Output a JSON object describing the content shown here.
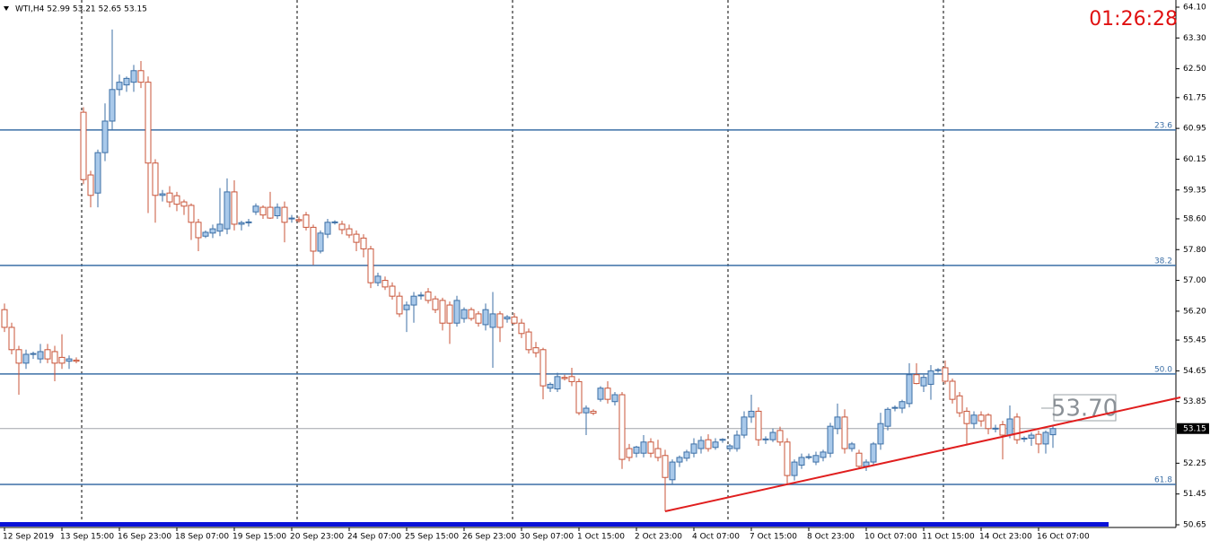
{
  "chart_data": {
    "type": "candlestick",
    "header": "WTI,H4  52.99 53.21 52.65 53.15",
    "clock": "01:26:28",
    "price_label": "53.70",
    "ylim": [
      50.65,
      64.1
    ],
    "yticks": [
      {
        "value": 64.1,
        "label": "64.10"
      },
      {
        "value": 63.3,
        "label": "63.30"
      },
      {
        "value": 62.5,
        "label": "62.50"
      },
      {
        "value": 61.75,
        "label": "61.75"
      },
      {
        "value": 60.95,
        "label": "60.95"
      },
      {
        "value": 60.15,
        "label": "60.15"
      },
      {
        "value": 59.35,
        "label": "59.35"
      },
      {
        "value": 58.6,
        "label": "58.60"
      },
      {
        "value": 57.8,
        "label": "57.80"
      },
      {
        "value": 57.0,
        "label": "57.00"
      },
      {
        "value": 56.2,
        "label": "56.20"
      },
      {
        "value": 55.45,
        "label": "55.45"
      },
      {
        "value": 54.65,
        "label": "54.65"
      },
      {
        "value": 53.85,
        "label": "53.85"
      },
      {
        "value": 52.25,
        "label": "52.25"
      },
      {
        "value": 51.45,
        "label": "51.45"
      },
      {
        "value": 50.65,
        "label": "50.65"
      }
    ],
    "current_price": {
      "value": 53.15,
      "label": "53.15"
    },
    "levels": [
      {
        "label": "23.6",
        "value": 60.91
      },
      {
        "label": "38.2",
        "value": 57.39
      },
      {
        "label": "50.0",
        "value": 54.57
      },
      {
        "label": "61.8",
        "value": 51.7
      }
    ],
    "level_color": "#3c6fa6",
    "trendline": {
      "x": [
        92,
        163.75
      ],
      "y": [
        51.0,
        53.96
      ],
      "color": "#e01e1e"
    },
    "up_color": "#a9c9ea",
    "up_stroke": "#3c6fa6",
    "down_color": "#ffffff",
    "down_stroke": "#c8553a",
    "categories": [
      "12 Sep 2019",
      null,
      null,
      null,
      null,
      null,
      null,
      null,
      "13 Sep 15:00",
      null,
      null,
      null,
      null,
      null,
      null,
      null,
      "16 Sep 23:00",
      null,
      null,
      null,
      null,
      null,
      null,
      null,
      "18 Sep 07:00",
      null,
      null,
      null,
      null,
      null,
      null,
      null,
      "19 Sep 15:00",
      null,
      null,
      null,
      null,
      null,
      null,
      null,
      "20 Sep 23:00",
      null,
      null,
      null,
      null,
      null,
      null,
      null,
      "24 Sep 07:00",
      null,
      null,
      null,
      null,
      null,
      null,
      null,
      "25 Sep 15:00",
      null,
      null,
      null,
      null,
      null,
      null,
      null,
      "26 Sep 23:00",
      null,
      null,
      null,
      null,
      null,
      null,
      null,
      "30 Sep 07:00",
      null,
      null,
      null,
      null,
      null,
      null,
      null,
      "1 Oct 15:00",
      null,
      null,
      null,
      null,
      null,
      null,
      null,
      "2 Oct 23:00",
      null,
      null,
      null,
      null,
      null,
      null,
      null,
      "4 Oct 07:00",
      null,
      null,
      null,
      null,
      null,
      null,
      null,
      "7 Oct 15:00",
      null,
      null,
      null,
      null,
      null,
      null,
      null,
      "8 Oct 23:00",
      null,
      null,
      null,
      null,
      null,
      null,
      null,
      "10 Oct 07:00",
      null,
      null,
      null,
      null,
      null,
      null,
      null,
      "11 Oct 15:00",
      null,
      null,
      null,
      null,
      null,
      null,
      null,
      "14 Oct 23:00",
      null,
      null,
      null,
      null,
      null,
      null,
      null,
      "16 Oct 07:00",
      null,
      null
    ],
    "ohlc": [
      [
        56.24,
        56.4,
        55.66,
        55.78
      ],
      [
        55.78,
        55.9,
        55.08,
        55.2
      ],
      [
        55.2,
        55.3,
        54.03,
        54.85
      ],
      [
        54.85,
        55.2,
        54.7,
        55.08
      ],
      [
        55.08,
        55.15,
        54.96,
        55.1
      ],
      [
        54.96,
        55.35,
        54.85,
        55.15
      ],
      [
        55.2,
        55.35,
        54.85,
        54.96
      ],
      [
        55.15,
        55.3,
        54.38,
        54.85
      ],
      [
        55.0,
        55.6,
        54.7,
        54.85
      ],
      [
        54.9,
        55.05,
        54.7,
        54.96
      ],
      [
        54.93,
        55.0,
        54.85,
        54.9
      ],
      [
        61.37,
        61.5,
        59.5,
        59.62
      ],
      [
        59.74,
        59.85,
        58.9,
        59.21
      ],
      [
        59.27,
        60.4,
        58.9,
        60.32
      ],
      [
        60.32,
        61.6,
        60.1,
        61.14
      ],
      [
        61.14,
        63.52,
        60.9,
        61.96
      ],
      [
        61.96,
        62.35,
        61.8,
        62.15
      ],
      [
        62.08,
        62.3,
        61.9,
        62.25
      ],
      [
        62.15,
        62.6,
        61.9,
        62.45
      ],
      [
        62.45,
        62.7,
        62.0,
        62.15
      ],
      [
        62.15,
        62.3,
        58.75,
        60.05
      ],
      [
        60.05,
        60.15,
        58.5,
        59.21
      ],
      [
        59.21,
        59.35,
        59.05,
        59.25
      ],
      [
        59.27,
        59.45,
        58.9,
        59.04
      ],
      [
        59.2,
        59.3,
        58.8,
        58.98
      ],
      [
        59.04,
        59.1,
        58.7,
        58.93
      ],
      [
        58.95,
        59.0,
        58.05,
        58.51
      ],
      [
        58.51,
        58.6,
        57.76,
        58.11
      ],
      [
        58.15,
        58.3,
        58.1,
        58.25
      ],
      [
        58.23,
        58.45,
        58.1,
        58.34
      ],
      [
        58.28,
        59.4,
        58.15,
        58.46
      ],
      [
        58.34,
        59.65,
        58.2,
        59.3
      ],
      [
        59.3,
        59.6,
        58.3,
        58.46
      ],
      [
        58.46,
        58.55,
        58.3,
        58.5
      ],
      [
        58.5,
        58.6,
        58.4,
        58.52
      ],
      [
        58.78,
        59.0,
        58.7,
        58.93
      ],
      [
        58.9,
        58.95,
        58.6,
        58.7
      ],
      [
        58.9,
        59.3,
        58.6,
        58.62
      ],
      [
        58.68,
        59.0,
        58.6,
        58.9
      ],
      [
        58.9,
        59.05,
        57.99,
        58.51
      ],
      [
        58.6,
        58.7,
        58.5,
        58.62
      ],
      [
        58.58,
        58.66,
        58.5,
        58.55
      ],
      [
        58.7,
        58.78,
        58.3,
        58.38
      ],
      [
        58.38,
        58.45,
        57.4,
        57.76
      ],
      [
        57.76,
        58.3,
        57.7,
        58.23
      ],
      [
        58.2,
        58.6,
        58.1,
        58.51
      ],
      [
        58.5,
        58.56,
        58.45,
        58.52
      ],
      [
        58.46,
        58.55,
        58.2,
        58.32
      ],
      [
        58.34,
        58.45,
        58.1,
        58.18
      ],
      [
        58.2,
        58.3,
        57.76,
        57.99
      ],
      [
        58.1,
        58.2,
        57.6,
        57.82
      ],
      [
        57.82,
        57.9,
        56.8,
        56.94
      ],
      [
        56.94,
        57.2,
        56.85,
        57.11
      ],
      [
        57.0,
        57.1,
        56.75,
        56.83
      ],
      [
        56.85,
        56.95,
        56.5,
        56.59
      ],
      [
        56.59,
        56.7,
        56.05,
        56.13
      ],
      [
        56.24,
        56.45,
        55.66,
        56.36
      ],
      [
        56.36,
        56.7,
        55.9,
        56.59
      ],
      [
        56.6,
        56.7,
        56.5,
        56.62
      ],
      [
        56.7,
        56.8,
        56.4,
        56.48
      ],
      [
        56.52,
        56.6,
        56.15,
        56.24
      ],
      [
        56.48,
        56.55,
        55.7,
        55.89
      ],
      [
        56.36,
        56.45,
        55.35,
        55.89
      ],
      [
        55.89,
        56.6,
        55.8,
        56.48
      ],
      [
        56.01,
        56.3,
        55.9,
        56.24
      ],
      [
        56.24,
        56.3,
        55.95,
        56.01
      ],
      [
        56.13,
        56.2,
        55.8,
        55.89
      ],
      [
        55.85,
        56.4,
        55.7,
        56.24
      ],
      [
        55.78,
        56.7,
        54.73,
        56.13
      ],
      [
        56.13,
        56.2,
        55.4,
        55.78
      ],
      [
        56.0,
        56.1,
        55.9,
        56.05
      ],
      [
        56.05,
        56.15,
        55.85,
        55.89
      ],
      [
        55.89,
        56.0,
        55.5,
        55.62
      ],
      [
        55.66,
        55.75,
        55.1,
        55.2
      ],
      [
        55.25,
        55.4,
        55.0,
        55.12
      ],
      [
        55.2,
        55.25,
        53.91,
        54.26
      ],
      [
        54.2,
        54.35,
        54.1,
        54.3
      ],
      [
        54.18,
        54.6,
        54.1,
        54.5
      ],
      [
        54.48,
        54.55,
        54.4,
        54.45
      ],
      [
        54.5,
        54.73,
        54.25,
        54.37
      ],
      [
        54.37,
        54.45,
        53.5,
        53.56
      ],
      [
        53.56,
        53.75,
        52.98,
        53.68
      ],
      [
        53.6,
        53.65,
        53.5,
        53.55
      ],
      [
        53.91,
        54.25,
        53.85,
        54.2
      ],
      [
        54.2,
        54.38,
        53.8,
        53.91
      ],
      [
        53.85,
        54.1,
        53.75,
        54.03
      ],
      [
        54.03,
        54.1,
        52.1,
        52.35
      ],
      [
        52.63,
        52.75,
        52.3,
        52.4
      ],
      [
        52.51,
        52.7,
        52.4,
        52.67
      ],
      [
        52.51,
        52.98,
        52.4,
        52.8
      ],
      [
        52.8,
        52.9,
        52.4,
        52.51
      ],
      [
        52.63,
        52.86,
        52.3,
        52.4
      ],
      [
        52.45,
        52.6,
        51.0,
        51.88
      ],
      [
        51.82,
        52.35,
        51.7,
        52.28
      ],
      [
        52.28,
        52.45,
        52.15,
        52.4
      ],
      [
        52.38,
        52.6,
        52.3,
        52.54
      ],
      [
        52.51,
        52.9,
        52.4,
        52.75
      ],
      [
        52.63,
        52.95,
        52.5,
        52.84
      ],
      [
        52.86,
        53.0,
        52.55,
        52.63
      ],
      [
        52.66,
        52.9,
        52.6,
        52.8
      ],
      [
        52.85,
        52.9,
        52.78,
        52.87
      ],
      [
        52.63,
        52.75,
        52.55,
        52.7
      ],
      [
        52.63,
        53.1,
        52.55,
        52.98
      ],
      [
        52.98,
        53.6,
        52.9,
        53.45
      ],
      [
        53.45,
        54.03,
        53.3,
        53.6
      ],
      [
        53.6,
        53.7,
        52.7,
        52.86
      ],
      [
        52.86,
        52.95,
        52.75,
        52.88
      ],
      [
        52.86,
        53.15,
        52.8,
        53.05
      ],
      [
        53.1,
        53.2,
        52.7,
        52.8
      ],
      [
        52.8,
        52.9,
        51.7,
        51.93
      ],
      [
        51.93,
        52.35,
        51.8,
        52.28
      ],
      [
        52.2,
        52.5,
        52.1,
        52.4
      ],
      [
        52.4,
        52.5,
        52.35,
        52.42
      ],
      [
        52.28,
        52.55,
        52.2,
        52.45
      ],
      [
        52.4,
        52.6,
        52.3,
        52.54
      ],
      [
        52.51,
        53.3,
        52.4,
        53.21
      ],
      [
        53.15,
        53.8,
        53.0,
        53.45
      ],
      [
        53.45,
        53.65,
        52.5,
        52.63
      ],
      [
        52.63,
        52.8,
        52.55,
        52.75
      ],
      [
        52.51,
        52.6,
        52.1,
        52.17
      ],
      [
        52.17,
        52.35,
        52.05,
        52.28
      ],
      [
        52.28,
        52.8,
        52.2,
        52.75
      ],
      [
        52.75,
        53.56,
        52.6,
        53.28
      ],
      [
        53.21,
        53.7,
        53.1,
        53.65
      ],
      [
        53.68,
        53.75,
        53.6,
        53.7
      ],
      [
        53.68,
        53.9,
        53.55,
        53.85
      ],
      [
        53.8,
        54.85,
        53.7,
        54.55
      ],
      [
        54.55,
        54.85,
        54.3,
        54.32
      ],
      [
        54.26,
        54.55,
        54.1,
        54.48
      ],
      [
        54.3,
        54.8,
        53.9,
        54.65
      ],
      [
        54.66,
        54.72,
        54.6,
        54.68
      ],
      [
        54.73,
        54.92,
        54.3,
        54.38
      ],
      [
        54.38,
        54.45,
        53.8,
        53.91
      ],
      [
        54.0,
        54.1,
        53.45,
        53.56
      ],
      [
        53.6,
        53.7,
        52.75,
        53.28
      ],
      [
        53.28,
        53.6,
        53.15,
        53.5
      ],
      [
        53.5,
        53.6,
        53.2,
        53.35
      ],
      [
        53.5,
        53.55,
        53.0,
        53.15
      ],
      [
        53.15,
        53.25,
        53.05,
        53.16
      ],
      [
        53.25,
        53.35,
        52.35,
        52.98
      ],
      [
        52.98,
        53.75,
        52.9,
        53.4
      ],
      [
        53.45,
        53.55,
        52.75,
        52.86
      ],
      [
        52.88,
        52.95,
        52.8,
        52.9
      ],
      [
        52.9,
        53.05,
        52.7,
        52.98
      ],
      [
        53.0,
        53.1,
        52.51,
        52.75
      ],
      [
        52.75,
        53.1,
        52.5,
        53.05
      ],
      [
        52.99,
        53.21,
        52.65,
        53.15
      ]
    ]
  }
}
